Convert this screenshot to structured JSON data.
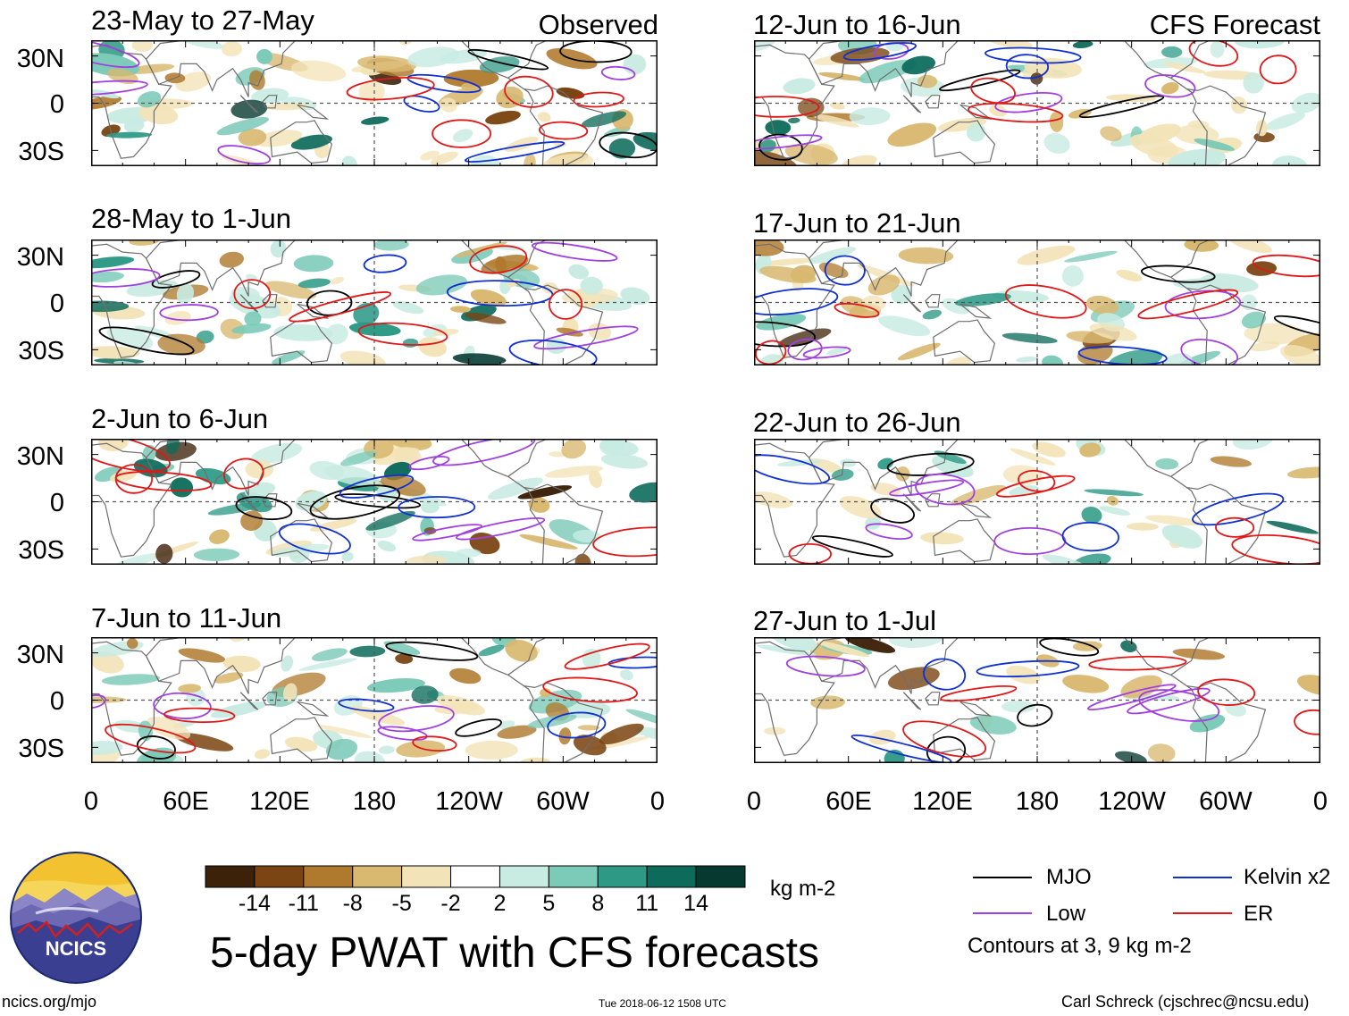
{
  "chart_data": {
    "type": "heatmap",
    "title": "5-day PWAT with CFS forecasts",
    "observed_label": "Observed",
    "forecast_label": "CFS Forecast",
    "panels_observed": [
      {
        "period": "23-May to 27-May"
      },
      {
        "period": "28-May to 1-Jun"
      },
      {
        "period": "2-Jun to 6-Jun"
      },
      {
        "period": "7-Jun to 11-Jun"
      }
    ],
    "panels_forecast": [
      {
        "period": "12-Jun to 16-Jun"
      },
      {
        "period": "17-Jun to 21-Jun"
      },
      {
        "period": "22-Jun to 26-Jun"
      },
      {
        "period": "27-Jun to 1-Jul"
      }
    ],
    "lat_ticks": [
      "30N",
      "0",
      "30S"
    ],
    "lon_ticks": [
      "0",
      "60E",
      "120E",
      "180",
      "120W",
      "60W",
      "0"
    ],
    "colorbar": {
      "units": "kg m-2",
      "ticks": [
        "-14",
        "-11",
        "-8",
        "-5",
        "-2",
        "2",
        "5",
        "8",
        "11",
        "14"
      ],
      "colors": [
        "#3d220a",
        "#7a4512",
        "#b07a2e",
        "#d9b870",
        "#f3e3b8",
        "#ffffff",
        "#c8ebe2",
        "#7ccab8",
        "#2e9a86",
        "#0d6b5b",
        "#063a31"
      ]
    },
    "legend": {
      "mjo": {
        "label": "MJO",
        "color": "#000000"
      },
      "low": {
        "label": "Low",
        "color": "#a040e0"
      },
      "kelvin": {
        "label": "Kelvin x2",
        "color": "#1030d0"
      },
      "er": {
        "label": "ER",
        "color": "#e01818"
      },
      "note": "Contours at 3, 9 kg m-2"
    }
  },
  "logo": {
    "text": "NCICS"
  },
  "footer": {
    "url": "ncics.org/mjo",
    "timestamp": "Tue 2018-06-12 1508 UTC",
    "author": "Carl Schreck (cjschrec@ncsu.edu)"
  }
}
